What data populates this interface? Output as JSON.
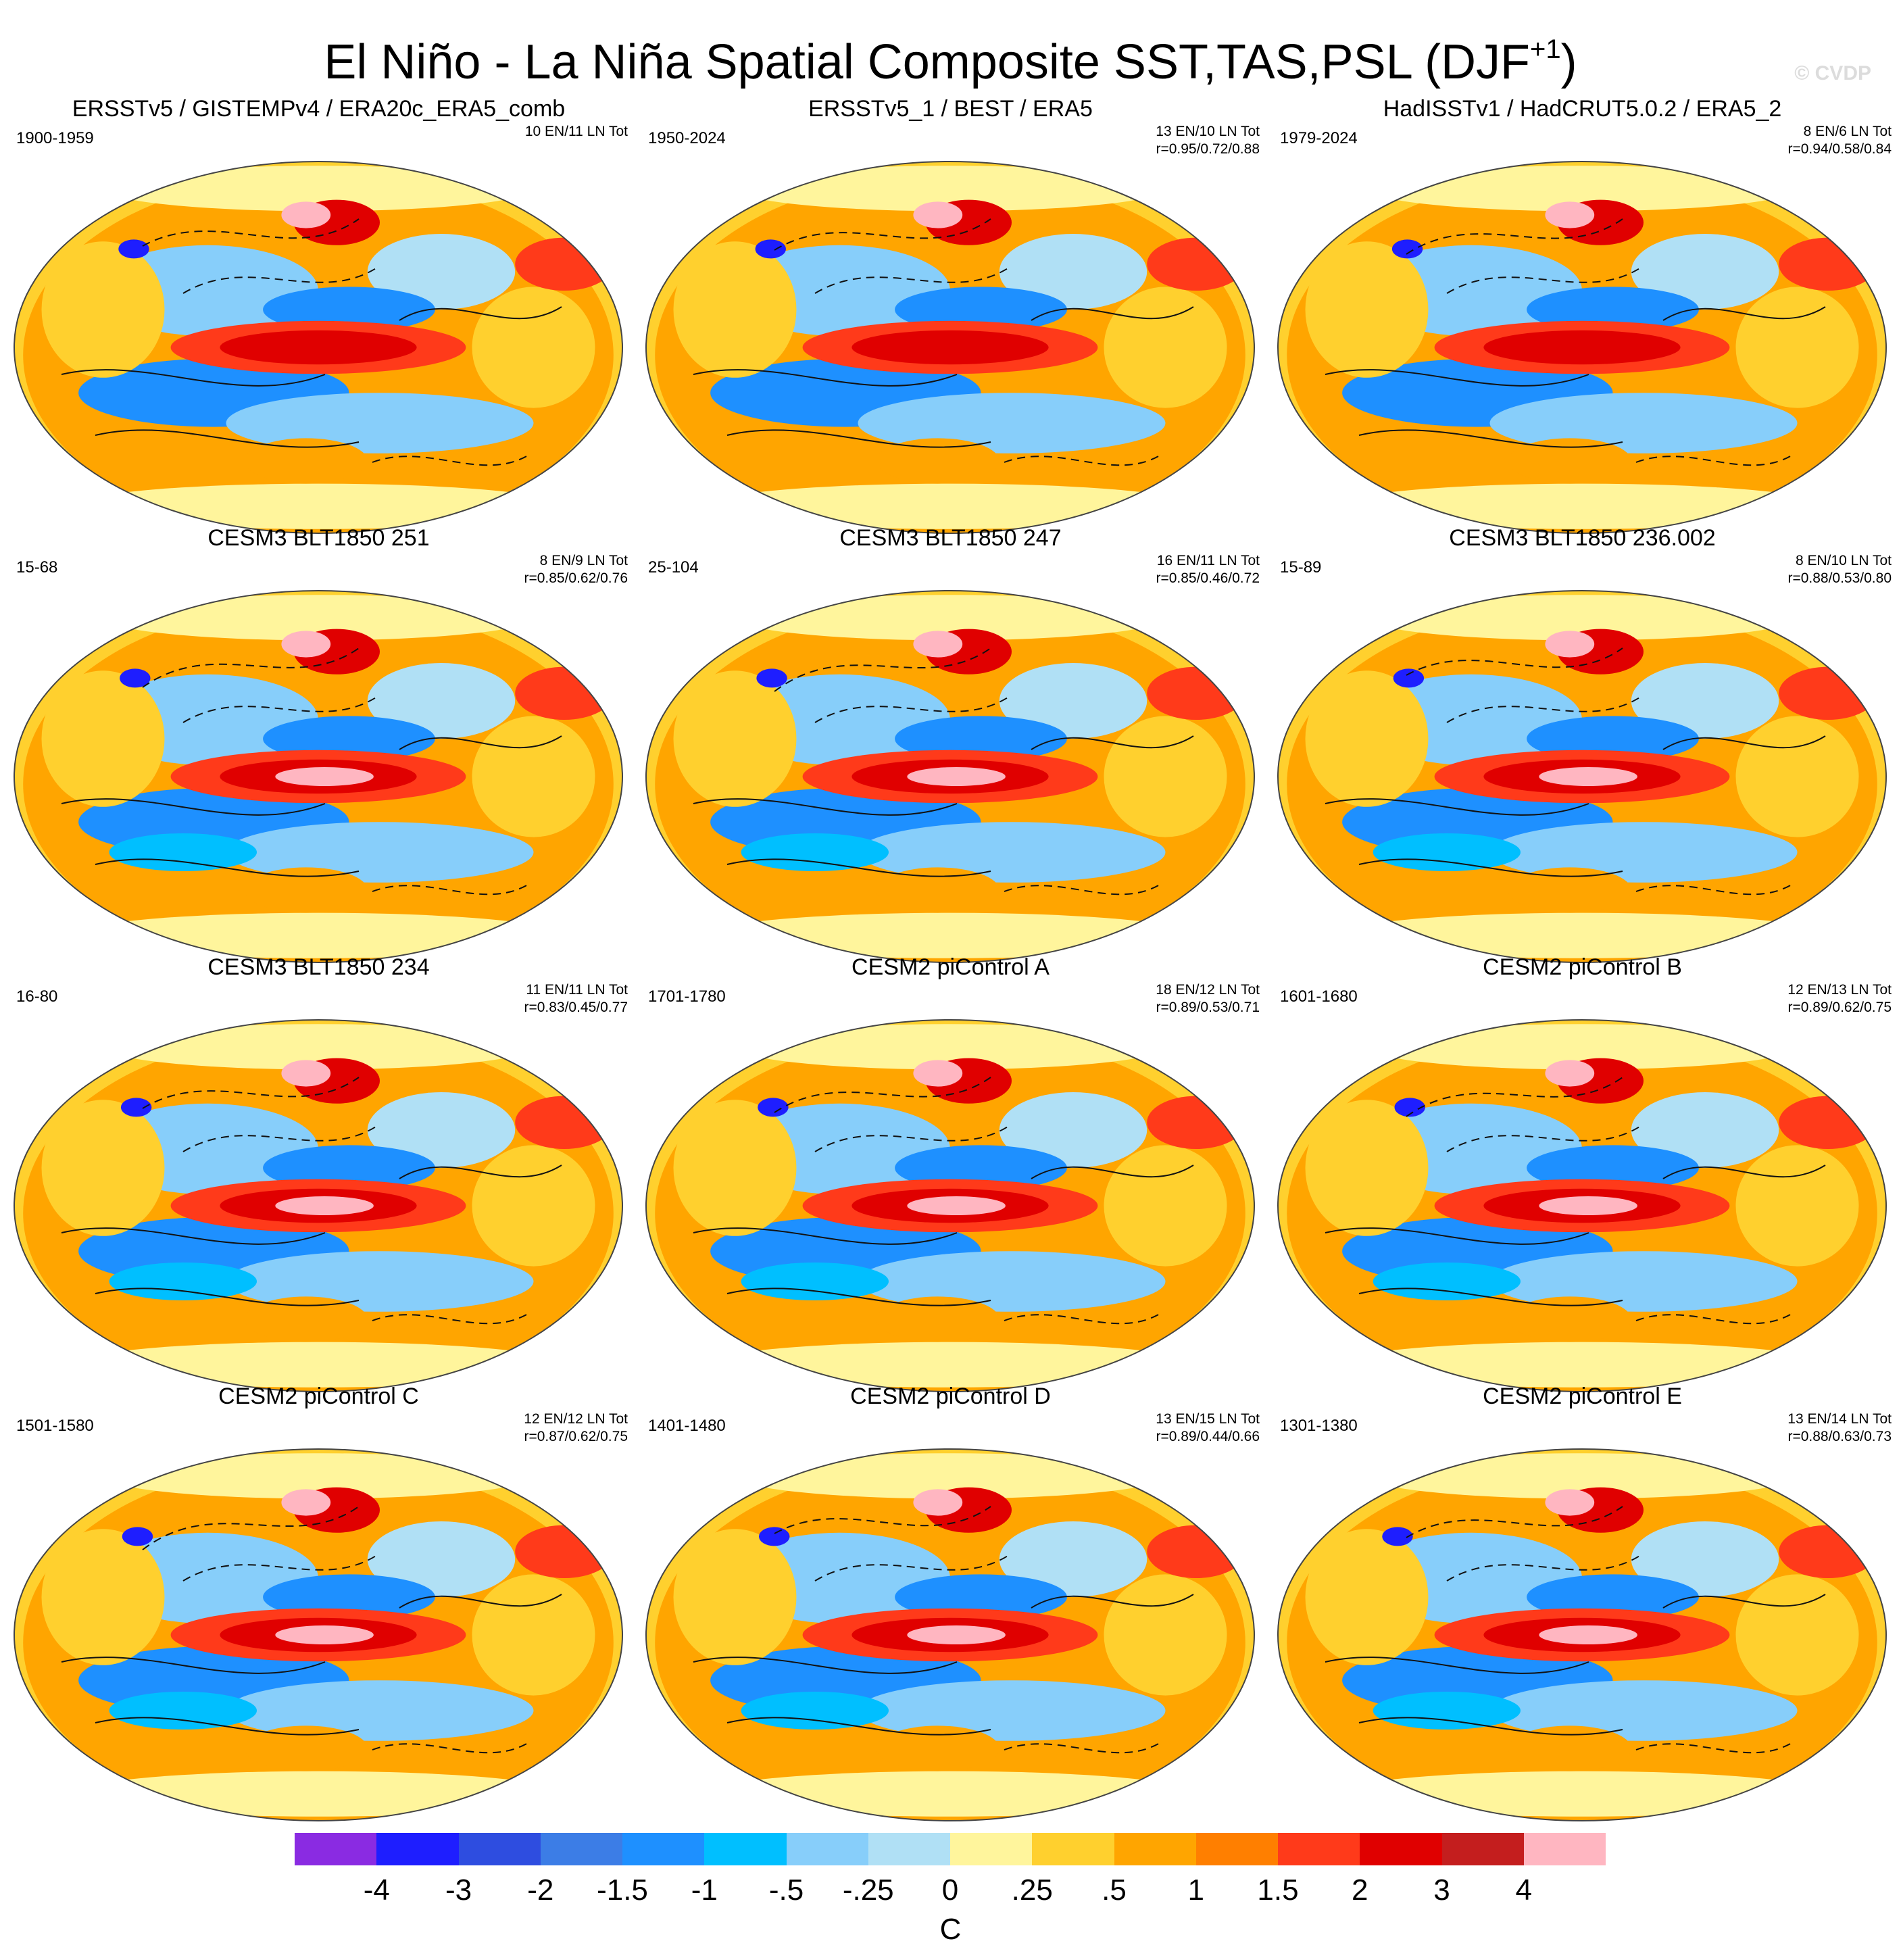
{
  "title": {
    "main": "El Niño - La Niña Spatial Composite SST,TAS,PSL (DJF",
    "superscript": "+1",
    "suffix": ")"
  },
  "copyright": "© CVDP",
  "panels": [
    {
      "title": "ERSSTv5 / GISTEMPv4 / ERA20c_ERA5_comb",
      "years": "1900-1959",
      "stats_line1": "10 EN/11 LN Tot",
      "stats_line2": ""
    },
    {
      "title": "ERSSTv5_1 / BEST / ERA5",
      "years": "1950-2024",
      "stats_line1": "13 EN/10 LN Tot",
      "stats_line2": "r=0.95/0.72/0.88"
    },
    {
      "title": "HadISSTv1 / HadCRUT5.0.2 / ERA5_2",
      "years": "1979-2024",
      "stats_line1": "8 EN/6 LN Tot",
      "stats_line2": "r=0.94/0.58/0.84"
    },
    {
      "title": "CESM3 BLT1850 251",
      "years": "15-68",
      "stats_line1": "8 EN/9 LN Tot",
      "stats_line2": "r=0.85/0.62/0.76"
    },
    {
      "title": "CESM3 BLT1850 247",
      "years": "25-104",
      "stats_line1": "16 EN/11 LN Tot",
      "stats_line2": "r=0.85/0.46/0.72"
    },
    {
      "title": "CESM3 BLT1850 236.002",
      "years": "15-89",
      "stats_line1": "8 EN/10 LN Tot",
      "stats_line2": "r=0.88/0.53/0.80"
    },
    {
      "title": "CESM3 BLT1850 234",
      "years": "16-80",
      "stats_line1": "11 EN/11 LN Tot",
      "stats_line2": "r=0.83/0.45/0.77"
    },
    {
      "title": "CESM2 piControl A",
      "years": "1701-1780",
      "stats_line1": "18 EN/12 LN Tot",
      "stats_line2": "r=0.89/0.53/0.71"
    },
    {
      "title": "CESM2 piControl B",
      "years": "1601-1680",
      "stats_line1": "12 EN/13 LN Tot",
      "stats_line2": "r=0.89/0.62/0.75"
    },
    {
      "title": "CESM2 piControl C",
      "years": "1501-1580",
      "stats_line1": "12 EN/12 LN Tot",
      "stats_line2": "r=0.87/0.62/0.75"
    },
    {
      "title": "CESM2 piControl D",
      "years": "1401-1480",
      "stats_line1": "13 EN/15 LN Tot",
      "stats_line2": "r=0.89/0.44/0.66"
    },
    {
      "title": "CESM2 piControl E",
      "years": "1301-1380",
      "stats_line1": "13 EN/14 LN Tot",
      "stats_line2": "r=0.88/0.63/0.73"
    }
  ],
  "colorbar": {
    "colors": [
      "#8a2be2",
      "#1e1eff",
      "#2e4de0",
      "#3c7de6",
      "#1e90ff",
      "#00bfff",
      "#87cefa",
      "#b0e0f5",
      "#fff59c",
      "#ffd02e",
      "#ffa500",
      "#ff7f00",
      "#ff3a1a",
      "#e00000",
      "#c41e1e",
      "#ffb6c1"
    ],
    "labels": [
      "-4",
      "-3",
      "-2",
      "-1.5",
      "-1",
      "-.5",
      "-.25",
      "0",
      ".25",
      ".5",
      "1",
      "1.5",
      "2",
      "3",
      "4"
    ],
    "unit": "C"
  }
}
